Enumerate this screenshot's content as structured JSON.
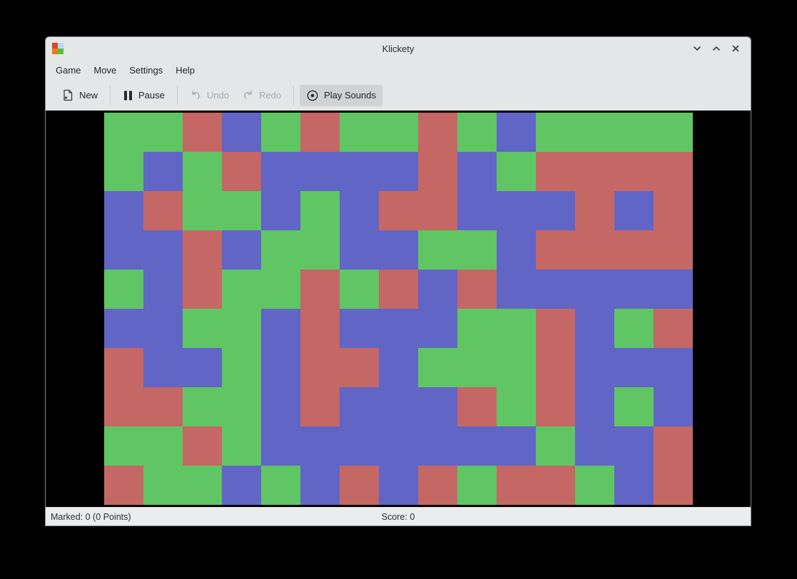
{
  "window": {
    "title": "Klickety",
    "app_icon_colors": {
      "top_left": "#d9452f",
      "top_right": "#bcd6ee",
      "bottom_left": "#f07a1d",
      "bottom_right": "#57c23a"
    }
  },
  "menubar": {
    "items": [
      {
        "label": "Game"
      },
      {
        "label": "Move"
      },
      {
        "label": "Settings"
      },
      {
        "label": "Help"
      }
    ]
  },
  "toolbar": {
    "new_label": "New",
    "pause_label": "Pause",
    "undo_label": "Undo",
    "redo_label": "Redo",
    "play_sounds_label": "Play Sounds",
    "play_sounds_checked": true,
    "undo_enabled": false,
    "redo_enabled": false
  },
  "board": {
    "columns": 15,
    "rows": 10,
    "cell_size": 55,
    "cell_colors": {
      "G": "#5fc663",
      "R": "#c56764",
      "B": "#6165c6"
    },
    "grid": [
      "GGRBGRGGRGBGGGG",
      "GBGRBBBBRBGRRRR",
      "BRGGBGBRRBBBRBR",
      "BBRBGGBBGGBRRRR",
      "GBRGGRGRBRBBBBB",
      "BBGGBRBBBGGRBGR",
      "RBBGBRRBGGGRBBB",
      "RRGGBRBBBRGRBGB",
      "GGRGBBBBBBBGBBR",
      "RGGBGBRBRGRRGBR"
    ]
  },
  "statusbar": {
    "marked": "Marked: 0 (0 Points)",
    "score": "Score: 0"
  }
}
